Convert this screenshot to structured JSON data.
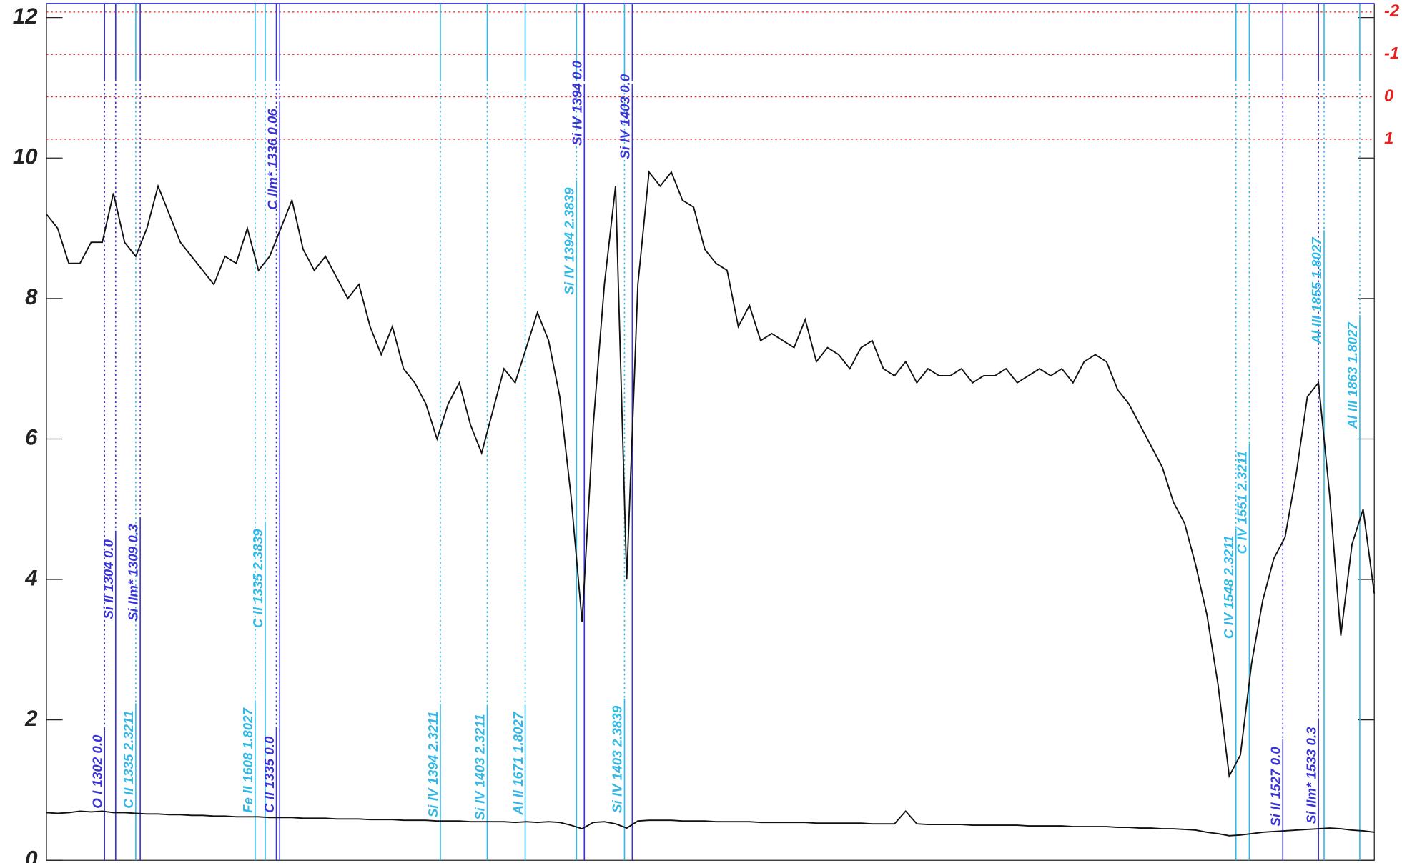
{
  "chart_data": {
    "type": "line",
    "ylim": [
      0,
      12.2
    ],
    "yticks": [
      0,
      2,
      4,
      6,
      8,
      10,
      12
    ],
    "y2lim": [
      18,
      -2.2
    ],
    "y2ticks": [
      -2,
      -1,
      0,
      1
    ],
    "y2color": "#e82020",
    "xlim": [
      0,
      119
    ],
    "series": [
      {
        "color": "#111111",
        "values": [
          9.2,
          9.0,
          8.5,
          8.5,
          8.8,
          8.8,
          9.5,
          8.8,
          8.6,
          9.0,
          9.6,
          9.2,
          8.8,
          8.6,
          8.4,
          8.2,
          8.6,
          8.5,
          9.0,
          8.4,
          8.6,
          9.0,
          9.4,
          8.7,
          8.4,
          8.6,
          8.3,
          8.0,
          8.2,
          7.6,
          7.2,
          7.6,
          7.0,
          6.8,
          6.5,
          6.0,
          6.5,
          6.8,
          6.2,
          5.8,
          6.4,
          7.0,
          6.8,
          7.3,
          7.8,
          7.4,
          6.6,
          5.2,
          3.4,
          6.2,
          8.2,
          9.6,
          4.0,
          8.2,
          9.8,
          9.6,
          9.8,
          9.4,
          9.3,
          8.7,
          8.5,
          8.4,
          7.6,
          7.9,
          7.4,
          7.5,
          7.4,
          7.3,
          7.7,
          7.1,
          7.3,
          7.2,
          7.0,
          7.3,
          7.4,
          7.0,
          6.9,
          7.1,
          6.8,
          7.0,
          6.9,
          6.9,
          7.0,
          6.8,
          6.9,
          6.9,
          7.0,
          6.8,
          6.9,
          7.0,
          6.9,
          7.0,
          6.8,
          7.1,
          7.2,
          7.1,
          6.7,
          6.5,
          6.2,
          5.9,
          5.6,
          5.1,
          4.8,
          4.2,
          3.5,
          2.5,
          1.2,
          1.5,
          2.8,
          3.7,
          4.3,
          4.6,
          5.5,
          6.6,
          6.8,
          5.2,
          3.2,
          4.5,
          5.0,
          3.8
        ]
      },
      {
        "color": "#111111",
        "values": [
          0.68,
          0.67,
          0.68,
          0.7,
          0.69,
          0.7,
          0.68,
          0.68,
          0.67,
          0.66,
          0.66,
          0.65,
          0.65,
          0.64,
          0.64,
          0.63,
          0.63,
          0.62,
          0.62,
          0.62,
          0.61,
          0.61,
          0.61,
          0.6,
          0.6,
          0.6,
          0.59,
          0.59,
          0.59,
          0.58,
          0.58,
          0.58,
          0.57,
          0.57,
          0.57,
          0.56,
          0.56,
          0.56,
          0.55,
          0.55,
          0.55,
          0.55,
          0.54,
          0.55,
          0.54,
          0.55,
          0.54,
          0.5,
          0.45,
          0.54,
          0.55,
          0.52,
          0.46,
          0.56,
          0.57,
          0.57,
          0.57,
          0.56,
          0.56,
          0.56,
          0.55,
          0.55,
          0.55,
          0.55,
          0.54,
          0.54,
          0.54,
          0.54,
          0.54,
          0.53,
          0.53,
          0.53,
          0.53,
          0.53,
          0.52,
          0.52,
          0.52,
          0.7,
          0.52,
          0.51,
          0.51,
          0.51,
          0.51,
          0.5,
          0.5,
          0.5,
          0.5,
          0.5,
          0.49,
          0.49,
          0.49,
          0.49,
          0.48,
          0.48,
          0.48,
          0.48,
          0.47,
          0.47,
          0.46,
          0.46,
          0.45,
          0.45,
          0.44,
          0.43,
          0.4,
          0.38,
          0.35,
          0.36,
          0.38,
          0.4,
          0.41,
          0.42,
          0.43,
          0.44,
          0.45,
          0.46,
          0.45,
          0.43,
          0.42,
          0.4
        ]
      }
    ],
    "annotations": [
      {
        "label": "O I 1302 0.0",
        "color": "#3a33d6",
        "x": 5.2
      },
      {
        "label": "Si II 1304 0.0",
        "color": "#3a33d6",
        "x": 6.2
      },
      {
        "label": "C II 1335 2.3211",
        "color": "#33b8e6",
        "x": 8.0
      },
      {
        "label": "Si IIm* 1309 0.3",
        "color": "#3a33d6",
        "x": 8.4
      },
      {
        "label": "Fe II 1608 1.8027",
        "color": "#33b8e6",
        "x": 18.7
      },
      {
        "label": "C II 1335 2.3839",
        "color": "#33b8e6",
        "x": 19.6
      },
      {
        "label": "C II 1335 0.0",
        "color": "#3a33d6",
        "x": 20.6
      },
      {
        "label": "C IIm* 1336 0.06",
        "color": "#3a33d6",
        "x": 20.9
      },
      {
        "label": "Si IV 1394 2.3211",
        "color": "#33b8e6",
        "x": 35.3
      },
      {
        "label": "Si IV 1403 2.3211",
        "color": "#33b8e6",
        "x": 39.5
      },
      {
        "label": "Al II 1671 1.8027",
        "color": "#33b8e6",
        "x": 42.9
      },
      {
        "label": "Si IV 1394 2.3839",
        "color": "#33b8e6",
        "x": 47.5
      },
      {
        "label": "Si IV 1394 0.0",
        "color": "#3a33d6",
        "x": 48.2
      },
      {
        "label": "Si IV 1403 2.3839",
        "color": "#33b8e6",
        "x": 51.8
      },
      {
        "label": "Si IV 1403 0.0",
        "color": "#3a33d6",
        "x": 52.5
      },
      {
        "label": "C IV 1548 2.3211",
        "color": "#33b8e6",
        "x": 106.6
      },
      {
        "label": "C IV 1551 2.3211",
        "color": "#33b8e6",
        "x": 107.8
      },
      {
        "label": "Si II 1527 0.0",
        "color": "#3a33d6",
        "x": 110.8
      },
      {
        "label": "Si IIm* 1533 0.3",
        "color": "#3a33d6",
        "x": 114.0
      },
      {
        "label": "Al III 1855 1.8027",
        "color": "#33b8e6",
        "x": 114.5
      },
      {
        "label": "Al III 1863 1.8027",
        "color": "#33b8e6",
        "x": 117.7
      }
    ]
  }
}
